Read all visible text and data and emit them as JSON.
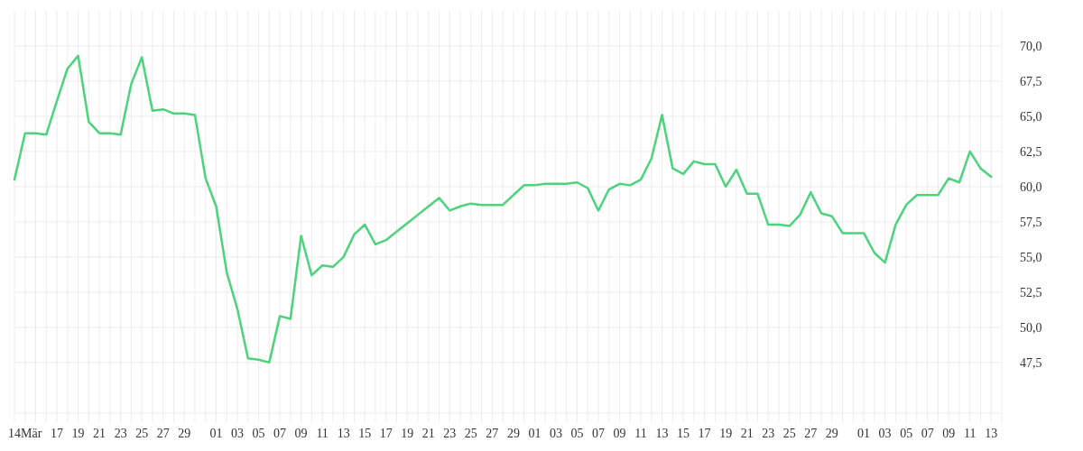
{
  "chart_data": {
    "type": "line",
    "x": [
      "--03-13",
      "--03-14",
      "--03-15",
      "--03-16",
      "--03-17",
      "--03-18",
      "--03-19",
      "--03-20",
      "--03-21",
      "--03-22",
      "--03-23",
      "--03-24",
      "--03-25",
      "--03-26",
      "--03-27",
      "--03-28",
      "--03-29",
      "--03-30",
      "--03-31",
      "--04-01",
      "--04-02",
      "--04-03",
      "--04-04",
      "--04-05",
      "--04-06",
      "--04-07",
      "--04-08",
      "--04-09",
      "--04-10",
      "--04-11",
      "--04-12",
      "--04-13",
      "--04-14",
      "--04-15",
      "--04-16",
      "--04-17",
      "--04-18",
      "--04-19",
      "--04-20",
      "--04-21",
      "--04-22",
      "--04-23",
      "--04-24",
      "--04-25",
      "--04-26",
      "--04-27",
      "--04-28",
      "--04-29",
      "--04-30",
      "--05-01",
      "--05-02",
      "--05-03",
      "--05-04",
      "--05-05",
      "--05-06",
      "--05-07",
      "--05-08",
      "--05-09",
      "--05-10",
      "--05-11",
      "--05-12",
      "--05-13",
      "--05-14",
      "--05-15",
      "--05-16",
      "--05-17",
      "--05-18",
      "--05-19",
      "--05-20",
      "--05-21",
      "--05-22",
      "--05-23",
      "--05-24",
      "--05-25",
      "--05-26",
      "--05-27",
      "--05-28",
      "--05-29",
      "--05-30",
      "--05-31",
      "--06-01",
      "--06-02",
      "--06-03",
      "--06-04",
      "--06-05",
      "--06-06",
      "--06-07",
      "--06-08",
      "--06-09",
      "--06-10",
      "--06-11",
      "--06-12",
      "--06-13"
    ],
    "series": [
      {
        "color": "#4cd47c",
        "values": [
          60.5,
          63.8,
          63.8,
          63.7,
          66.1,
          68.4,
          69.3,
          64.6,
          63.8,
          63.8,
          63.7,
          67.3,
          69.2,
          65.4,
          65.5,
          65.2,
          65.2,
          65.1,
          60.6,
          58.6,
          53.9,
          51.3,
          47.8,
          47.7,
          47.5,
          50.8,
          50.6,
          56.5,
          53.7,
          54.4,
          54.3,
          55.0,
          56.6,
          57.3,
          55.9,
          56.2,
          56.8,
          57.4,
          58.0,
          58.6,
          59.2,
          58.3,
          58.6,
          58.8,
          58.7,
          58.7,
          58.7,
          59.4,
          60.1,
          60.1,
          60.2,
          60.2,
          60.2,
          60.3,
          59.9,
          58.3,
          59.8,
          60.2,
          60.1,
          60.5,
          62.0,
          65.1,
          61.3,
          60.9,
          61.8,
          61.6,
          61.6,
          60.0,
          61.2,
          59.5,
          59.5,
          57.3,
          57.3,
          57.2,
          58.0,
          59.6,
          58.1,
          57.9,
          56.7,
          56.7,
          56.7,
          55.3,
          54.6,
          57.3,
          58.7,
          59.4,
          59.4,
          59.4,
          60.6,
          60.3,
          62.5,
          61.3,
          60.7
        ]
      }
    ],
    "xlim": [
      "--03-13",
      "--06-14"
    ],
    "xticks": [
      {
        "value": "--03-13",
        "label": null
      },
      {
        "value": "--03-14",
        "label": "14Mär"
      },
      {
        "value": "--03-15",
        "label": null
      },
      {
        "value": "--03-16",
        "label": null
      },
      {
        "value": "--03-17",
        "label": "17"
      },
      {
        "value": "--03-18",
        "label": null
      },
      {
        "value": "--03-19",
        "label": "19"
      },
      {
        "value": "--03-20",
        "label": null
      },
      {
        "value": "--03-21",
        "label": "21"
      },
      {
        "value": "--03-22",
        "label": null
      },
      {
        "value": "--03-23",
        "label": "23"
      },
      {
        "value": "--03-24",
        "label": null
      },
      {
        "value": "--03-25",
        "label": "25"
      },
      {
        "value": "--03-26",
        "label": null
      },
      {
        "value": "--03-27",
        "label": "27"
      },
      {
        "value": "--03-28",
        "label": null
      },
      {
        "value": "--03-29",
        "label": "29"
      },
      {
        "value": "--03-30",
        "label": null
      },
      {
        "value": "--03-31",
        "label": null
      },
      {
        "value": "--04-01",
        "label": "01"
      },
      {
        "value": "--04-02",
        "label": null
      },
      {
        "value": "--04-03",
        "label": "03"
      },
      {
        "value": "--04-04",
        "label": null
      },
      {
        "value": "--04-05",
        "label": "05"
      },
      {
        "value": "--04-06",
        "label": null
      },
      {
        "value": "--04-07",
        "label": "07"
      },
      {
        "value": "--04-08",
        "label": null
      },
      {
        "value": "--04-09",
        "label": "09"
      },
      {
        "value": "--04-10",
        "label": null
      },
      {
        "value": "--04-11",
        "label": "11"
      },
      {
        "value": "--04-12",
        "label": null
      },
      {
        "value": "--04-13",
        "label": "13"
      },
      {
        "value": "--04-14",
        "label": null
      },
      {
        "value": "--04-15",
        "label": "15"
      },
      {
        "value": "--04-16",
        "label": null
      },
      {
        "value": "--04-17",
        "label": "17"
      },
      {
        "value": "--04-18",
        "label": null
      },
      {
        "value": "--04-19",
        "label": "19"
      },
      {
        "value": "--04-20",
        "label": null
      },
      {
        "value": "--04-21",
        "label": "21"
      },
      {
        "value": "--04-22",
        "label": null
      },
      {
        "value": "--04-23",
        "label": "23"
      },
      {
        "value": "--04-24",
        "label": null
      },
      {
        "value": "--04-25",
        "label": "25"
      },
      {
        "value": "--04-26",
        "label": null
      },
      {
        "value": "--04-27",
        "label": "27"
      },
      {
        "value": "--04-28",
        "label": null
      },
      {
        "value": "--04-29",
        "label": "29"
      },
      {
        "value": "--04-30",
        "label": null
      },
      {
        "value": "--05-01",
        "label": "01"
      },
      {
        "value": "--05-02",
        "label": null
      },
      {
        "value": "--05-03",
        "label": "03"
      },
      {
        "value": "--05-04",
        "label": null
      },
      {
        "value": "--05-05",
        "label": "05"
      },
      {
        "value": "--05-06",
        "label": null
      },
      {
        "value": "--05-07",
        "label": "07"
      },
      {
        "value": "--05-08",
        "label": null
      },
      {
        "value": "--05-09",
        "label": "09"
      },
      {
        "value": "--05-10",
        "label": null
      },
      {
        "value": "--05-11",
        "label": "11"
      },
      {
        "value": "--05-12",
        "label": null
      },
      {
        "value": "--05-13",
        "label": "13"
      },
      {
        "value": "--05-14",
        "label": null
      },
      {
        "value": "--05-15",
        "label": "15"
      },
      {
        "value": "--05-16",
        "label": null
      },
      {
        "value": "--05-17",
        "label": "17"
      },
      {
        "value": "--05-18",
        "label": null
      },
      {
        "value": "--05-19",
        "label": "19"
      },
      {
        "value": "--05-20",
        "label": null
      },
      {
        "value": "--05-21",
        "label": "21"
      },
      {
        "value": "--05-22",
        "label": null
      },
      {
        "value": "--05-23",
        "label": "23"
      },
      {
        "value": "--05-24",
        "label": null
      },
      {
        "value": "--05-25",
        "label": "25"
      },
      {
        "value": "--05-26",
        "label": null
      },
      {
        "value": "--05-27",
        "label": "27"
      },
      {
        "value": "--05-28",
        "label": null
      },
      {
        "value": "--05-29",
        "label": "29"
      },
      {
        "value": "--05-30",
        "label": null
      },
      {
        "value": "--05-31",
        "label": null
      },
      {
        "value": "--06-01",
        "label": "01"
      },
      {
        "value": "--06-02",
        "label": null
      },
      {
        "value": "--06-03",
        "label": "03"
      },
      {
        "value": "--06-04",
        "label": null
      },
      {
        "value": "--06-05",
        "label": "05"
      },
      {
        "value": "--06-06",
        "label": null
      },
      {
        "value": "--06-07",
        "label": "07"
      },
      {
        "value": "--06-08",
        "label": null
      },
      {
        "value": "--06-09",
        "label": "09"
      },
      {
        "value": "--06-10",
        "label": null
      },
      {
        "value": "--06-11",
        "label": "11"
      },
      {
        "value": "--06-12",
        "label": null
      },
      {
        "value": "--06-13",
        "label": "13"
      },
      {
        "value": "--06-14",
        "label": null
      }
    ],
    "ylim": [
      43.9,
      72.5
    ],
    "yticks": [
      {
        "value": 47.5,
        "label": "47,5"
      },
      {
        "value": 50,
        "label": "50,0"
      },
      {
        "value": 52.5,
        "label": "52,5"
      },
      {
        "value": 55,
        "label": "55,0"
      },
      {
        "value": 57.5,
        "label": "57,5"
      },
      {
        "value": 60,
        "label": "60,0"
      },
      {
        "value": 62.5,
        "label": "62,5"
      },
      {
        "value": 65,
        "label": "65,0"
      },
      {
        "value": 67.5,
        "label": "67,5"
      },
      {
        "value": 70,
        "label": "70,0"
      }
    ],
    "grid": true,
    "marker": "none",
    "line_style": "solid"
  }
}
